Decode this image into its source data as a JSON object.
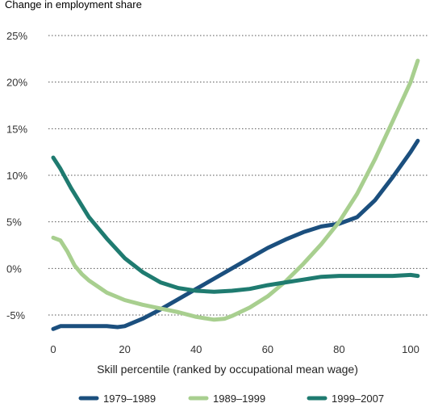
{
  "chart_data": {
    "type": "line",
    "title": "",
    "ylabel": "Change in employment share",
    "xlabel": "Skill percentile (ranked by occupational mean wage)",
    "xlim": [
      0,
      100
    ],
    "ylim": [
      -5,
      25
    ],
    "xticks": [
      0,
      20,
      40,
      60,
      80,
      100
    ],
    "xtick_labels": [
      "0",
      "20",
      "40",
      "60",
      "80",
      "100"
    ],
    "yticks": [
      25,
      20,
      15,
      10,
      5,
      0,
      -5
    ],
    "ytick_labels": [
      "25%",
      "20%",
      "15%",
      "10%",
      "5%",
      "0%",
      "-5%"
    ],
    "grid": "horizontal dotted",
    "legend_position": "bottom",
    "series": [
      {
        "name": "1979–1989",
        "color": "#1b4f7e",
        "x": [
          0,
          2,
          5,
          10,
          15,
          18,
          20,
          25,
          30,
          35,
          40,
          45,
          50,
          55,
          60,
          65,
          70,
          75,
          80,
          85,
          90,
          95,
          100,
          102
        ],
        "y": [
          -6.5,
          -6.2,
          -6.2,
          -6.2,
          -6.2,
          -6.3,
          -6.2,
          -5.4,
          -4.4,
          -3.3,
          -2.2,
          -1.1,
          0,
          1.1,
          2.2,
          3.1,
          3.9,
          4.5,
          4.8,
          5.5,
          7.3,
          9.8,
          12.5,
          13.7
        ]
      },
      {
        "name": "1989–1999",
        "color": "#a8cf8f",
        "x": [
          0,
          2,
          4,
          6,
          8,
          10,
          15,
          20,
          25,
          30,
          35,
          40,
          45,
          48,
          50,
          55,
          60,
          65,
          70,
          75,
          80,
          85,
          90,
          95,
          100,
          102
        ],
        "y": [
          3.3,
          3.0,
          1.8,
          0.3,
          -0.6,
          -1.3,
          -2.6,
          -3.4,
          -3.9,
          -4.3,
          -4.7,
          -5.2,
          -5.5,
          -5.4,
          -5.1,
          -4.2,
          -3.0,
          -1.4,
          0.5,
          2.6,
          5.0,
          8.0,
          11.7,
          15.8,
          20.0,
          22.3
        ]
      },
      {
        "name": "1999–2007",
        "color": "#1f7b70",
        "x": [
          0,
          2,
          5,
          10,
          15,
          20,
          25,
          30,
          35,
          40,
          45,
          50,
          55,
          60,
          65,
          70,
          75,
          80,
          85,
          90,
          95,
          100,
          102
        ],
        "y": [
          11.9,
          10.7,
          8.6,
          5.5,
          3.2,
          1.1,
          -0.4,
          -1.5,
          -2.1,
          -2.4,
          -2.5,
          -2.4,
          -2.2,
          -1.8,
          -1.5,
          -1.2,
          -0.9,
          -0.8,
          -0.8,
          -0.8,
          -0.8,
          -0.7,
          -0.8
        ]
      }
    ]
  }
}
